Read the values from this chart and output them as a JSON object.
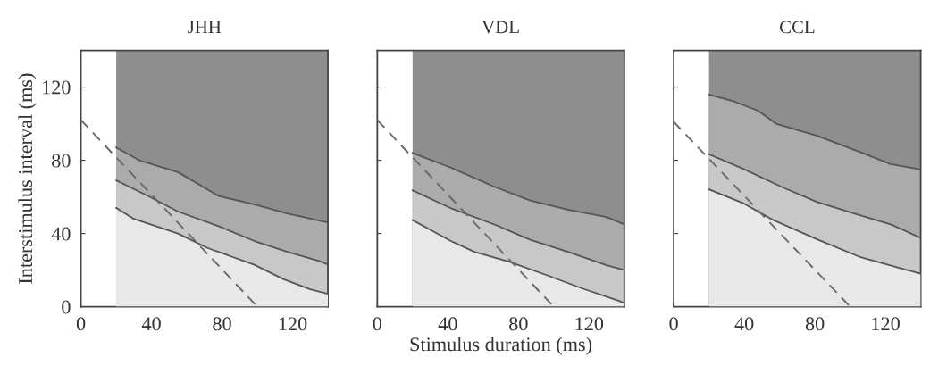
{
  "chart_data": [
    {
      "type": "area",
      "title": "JHH",
      "ylabel": "Interstimulus interval (ms)",
      "xlim": [
        0,
        140
      ],
      "ylim": [
        0,
        140
      ],
      "xticks": [
        0,
        40,
        80,
        120
      ],
      "yticks": [
        0,
        40,
        80,
        120
      ],
      "grid": false,
      "bands": [
        {
          "axis": "x",
          "from": 20,
          "to": 140,
          "color": "#8e8e8e"
        }
      ],
      "series": [
        {
          "color": "#ababab",
          "x": [
            20,
            33,
            55,
            78,
            98,
            117,
            135,
            140
          ],
          "values": [
            87,
            80,
            73.5,
            60.5,
            56,
            51,
            47,
            46
          ]
        },
        {
          "color": "#c8c8c8",
          "x": [
            20,
            38,
            55,
            78,
            98,
            117,
            135,
            140
          ],
          "values": [
            69,
            60.5,
            52,
            44,
            36,
            30,
            25,
            23
          ]
        },
        {
          "color": "#e8e8e8",
          "x": [
            20,
            30,
            55,
            72,
            98,
            115,
            130,
            140
          ],
          "values": [
            54,
            48,
            40,
            32,
            23,
            15,
            9.5,
            7
          ]
        },
        {
          "type": "line",
          "line_style": "dashed",
          "color": "#6a6a6a",
          "x": [
            0,
            100
          ],
          "values": [
            102,
            0
          ]
        }
      ]
    },
    {
      "type": "area",
      "title": "VDL",
      "xlabel": "Stimulus duration (ms)",
      "xlim": [
        0,
        140
      ],
      "ylim": [
        0,
        140
      ],
      "xticks": [
        0,
        40,
        80,
        120
      ],
      "yticks": [
        0,
        40,
        80,
        120
      ],
      "tick_labels": "x",
      "grid": false,
      "bands": [
        {
          "axis": "x",
          "from": 20,
          "to": 140,
          "color": "#8e8e8e"
        }
      ],
      "series": [
        {
          "color": "#ababab",
          "x": [
            20,
            41.7,
            66.7,
            86.7,
            108,
            130,
            140
          ],
          "values": [
            84,
            76,
            65.4,
            58,
            53,
            49,
            45
          ]
        },
        {
          "color": "#c8c8c8",
          "x": [
            20,
            41.7,
            66.7,
            86.7,
            108,
            130,
            140
          ],
          "values": [
            63.6,
            53.8,
            44.8,
            36.6,
            30,
            22.7,
            20
          ]
        },
        {
          "color": "#e8e8e8",
          "x": [
            20,
            41.7,
            55,
            75,
            96.7,
            116.7,
            136.7,
            140
          ],
          "values": [
            47.3,
            35.9,
            30,
            24.5,
            17,
            9.8,
            3.3,
            2
          ]
        },
        {
          "type": "line",
          "line_style": "dashed",
          "color": "#6a6a6a",
          "x": [
            0,
            100
          ],
          "values": [
            102,
            0
          ]
        }
      ]
    },
    {
      "type": "area",
      "title": "CCL",
      "xlim": [
        0,
        140
      ],
      "ylim": [
        0,
        140
      ],
      "xticks": [
        0,
        40,
        80,
        120
      ],
      "yticks": [
        0,
        40,
        80,
        120
      ],
      "tick_labels": "x",
      "grid": false,
      "bands": [
        {
          "axis": "x",
          "from": 20,
          "to": 140,
          "color": "#8e8e8e"
        }
      ],
      "series": [
        {
          "color": "#ababab",
          "x": [
            20,
            34.6,
            48,
            58,
            81.3,
            106,
            123,
            140
          ],
          "values": [
            116,
            112,
            107,
            100,
            93.4,
            84.4,
            77.9,
            75
          ]
        },
        {
          "color": "#c8c8c8",
          "x": [
            20,
            39.7,
            61.3,
            81.3,
            106,
            123,
            140
          ],
          "values": [
            83.3,
            75.2,
            65.4,
            57.2,
            49.8,
            45,
            37.6
          ]
        },
        {
          "color": "#e8e8e8",
          "x": [
            20,
            39.7,
            56.3,
            81.3,
            106,
            131,
            140
          ],
          "values": [
            64.1,
            56.4,
            47.4,
            36.8,
            27,
            20.4,
            18
          ]
        },
        {
          "type": "line",
          "line_style": "dashed",
          "color": "#6a6a6a",
          "x": [
            0,
            100
          ],
          "values": [
            101,
            0
          ]
        }
      ]
    }
  ]
}
